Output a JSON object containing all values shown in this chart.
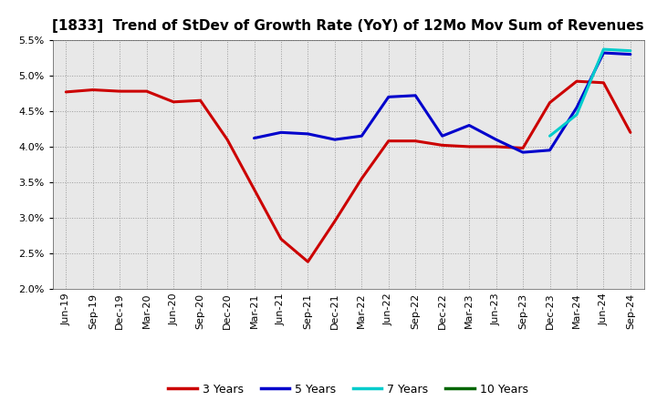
{
  "title": "[1833]  Trend of StDev of Growth Rate (YoY) of 12Mo Mov Sum of Revenues",
  "ylim": [
    0.02,
    0.055
  ],
  "yticks": [
    0.02,
    0.025,
    0.03,
    0.035,
    0.04,
    0.045,
    0.05,
    0.055
  ],
  "x_labels": [
    "Jun-19",
    "Sep-19",
    "Dec-19",
    "Mar-20",
    "Jun-20",
    "Sep-20",
    "Dec-20",
    "Mar-21",
    "Jun-21",
    "Sep-21",
    "Dec-21",
    "Mar-22",
    "Jun-22",
    "Sep-22",
    "Dec-22",
    "Mar-23",
    "Jun-23",
    "Sep-23",
    "Dec-23",
    "Mar-24",
    "Jun-24",
    "Sep-24"
  ],
  "series_3yr": [
    0.0477,
    0.048,
    0.0478,
    0.0478,
    0.0463,
    0.0465,
    0.041,
    0.034,
    0.027,
    0.0238,
    0.0295,
    0.0355,
    0.0408,
    0.0408,
    0.0402,
    0.04,
    0.04,
    0.0398,
    0.0462,
    0.0492,
    0.049,
    0.042
  ],
  "series_5yr": [
    null,
    null,
    null,
    null,
    null,
    null,
    null,
    0.0412,
    0.042,
    0.0418,
    0.041,
    0.0415,
    0.047,
    0.0472,
    0.0415,
    0.043,
    0.041,
    0.0392,
    0.0395,
    0.0455,
    0.0532,
    0.053
  ],
  "series_7yr": [
    null,
    null,
    null,
    null,
    null,
    null,
    null,
    null,
    null,
    null,
    null,
    null,
    null,
    null,
    null,
    null,
    null,
    null,
    0.0415,
    0.0445,
    0.0537,
    0.0535
  ],
  "series_10yr": [
    null,
    null,
    null,
    null,
    null,
    null,
    null,
    null,
    null,
    null,
    null,
    null,
    null,
    null,
    null,
    null,
    null,
    null,
    null,
    null,
    null,
    null
  ],
  "color_3yr": "#cc0000",
  "color_5yr": "#0000cc",
  "color_7yr": "#00cccc",
  "color_10yr": "#006600",
  "bg_color": "#e8e8e8",
  "grid_color": "#888888",
  "linewidth": 2.2,
  "title_fontsize": 11,
  "tick_fontsize": 8,
  "legend_fontsize": 9
}
